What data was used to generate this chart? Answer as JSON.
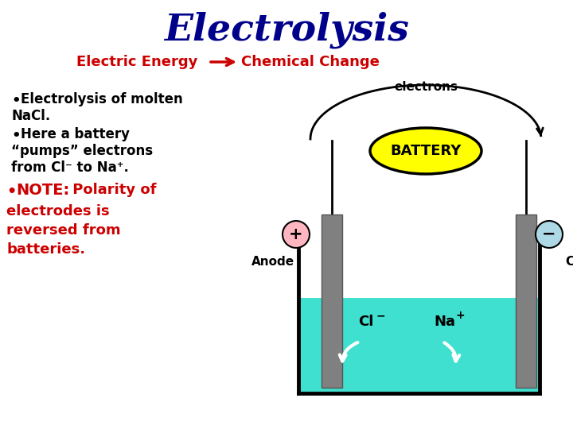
{
  "title": "Electrolysis",
  "title_color": "#00008B",
  "subtitle_left": "Electric Energy",
  "subtitle_arrow": "→",
  "subtitle_right": "Chemical Change",
  "subtitle_color": "#CC0000",
  "battery_color": "#FFFF00",
  "liquid_color": "#40E0D0",
  "electrode_color": "#808080",
  "anode_plus_color": "#FFB6C1",
  "cathode_minus_color": "#ADD8E6",
  "background_color": "#FFFFFF",
  "figw": 7.2,
  "figh": 5.4,
  "dpi": 100
}
